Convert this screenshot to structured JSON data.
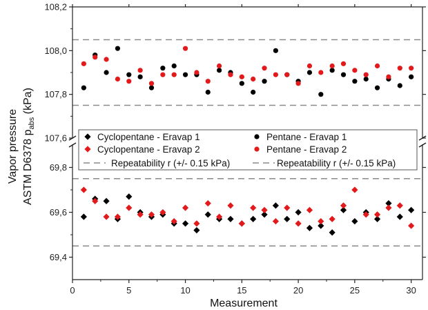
{
  "chart_data": {
    "type": "scatter",
    "title": "",
    "xlabel": "Measurement",
    "ylabel_line1": "Vapor pressure",
    "ylabel_line2_main": "ASTM D6378 p",
    "ylabel_line2_sub": "abs",
    "ylabel_line2_unit": " (kPa)",
    "x_range": [
      0,
      31
    ],
    "x_ticks": [
      "0",
      "5",
      "10",
      "15",
      "20",
      "25",
      "30"
    ],
    "x_tick_values": [
      0,
      5,
      10,
      15,
      20,
      25,
      30
    ],
    "broken_y_axis": true,
    "upper_panel": {
      "ylim": [
        107.6,
        108.2
      ],
      "y_ticks": [
        "107,6",
        "107,8",
        "108,0",
        "108,2"
      ],
      "y_tick_values": [
        107.6,
        107.8,
        108.0,
        108.2
      ],
      "reference_lines": [
        107.75,
        108.05
      ]
    },
    "lower_panel": {
      "ylim": [
        69.3,
        69.9
      ],
      "y_ticks": [
        "69,4",
        "69,6",
        "69,8"
      ],
      "y_tick_values": [
        69.4,
        69.6,
        69.8
      ],
      "reference_lines": [
        69.45,
        69.75
      ]
    },
    "x": [
      1,
      2,
      3,
      4,
      5,
      6,
      7,
      8,
      9,
      10,
      11,
      12,
      13,
      14,
      15,
      16,
      17,
      18,
      19,
      20,
      21,
      22,
      23,
      24,
      25,
      26,
      27,
      28,
      29,
      30
    ],
    "series": [
      {
        "name": "Cyclopentane - Eravap 1",
        "panel": "lower",
        "marker": "diamond",
        "color": "#000000",
        "values": [
          69.58,
          69.66,
          69.65,
          69.57,
          69.67,
          69.6,
          69.58,
          69.59,
          69.55,
          69.55,
          69.52,
          69.59,
          69.57,
          69.57,
          69.55,
          69.57,
          69.59,
          69.63,
          69.57,
          69.6,
          69.53,
          69.54,
          69.51,
          69.61,
          69.56,
          69.6,
          69.57,
          69.64,
          69.58,
          69.61
        ]
      },
      {
        "name": "Cyclopentane - Eravap 2",
        "panel": "lower",
        "marker": "diamond",
        "color": "#e31a1c",
        "values": [
          69.7,
          69.65,
          69.58,
          69.58,
          69.62,
          69.59,
          69.59,
          69.6,
          69.56,
          69.62,
          69.55,
          69.64,
          69.58,
          69.63,
          69.55,
          69.62,
          69.61,
          69.56,
          69.62,
          69.55,
          69.61,
          69.56,
          69.57,
          69.63,
          69.7,
          69.59,
          69.59,
          69.62,
          69.63,
          69.54
        ]
      },
      {
        "name": "Pentane - Eravap 1",
        "panel": "upper",
        "marker": "circle",
        "color": "#000000",
        "values": [
          107.83,
          107.98,
          107.9,
          108.01,
          107.89,
          107.88,
          107.83,
          107.92,
          107.93,
          107.89,
          107.89,
          107.81,
          107.91,
          107.9,
          107.85,
          107.81,
          107.86,
          108.0,
          107.89,
          107.86,
          107.9,
          107.8,
          107.91,
          107.89,
          107.86,
          107.87,
          107.83,
          107.87,
          107.84,
          107.88
        ]
      },
      {
        "name": "Pentane - Eravap 2",
        "panel": "upper",
        "marker": "circle",
        "color": "#e31a1c",
        "values": [
          107.94,
          107.97,
          107.96,
          107.87,
          107.86,
          107.91,
          107.85,
          107.89,
          107.89,
          108.01,
          107.9,
          107.86,
          107.93,
          107.89,
          107.88,
          107.87,
          107.92,
          107.89,
          107.89,
          107.85,
          107.93,
          107.9,
          107.93,
          107.94,
          107.91,
          107.89,
          107.93,
          107.88,
          107.92,
          107.92
        ]
      }
    ],
    "reference_line_label": "Repeatability r (+/- 0.15 kPa)",
    "legend": [
      {
        "label": "Cyclopentane - Eravap 1",
        "marker": "diamond",
        "color": "#000000"
      },
      {
        "label": "Pentane - Eravap 1",
        "marker": "circle",
        "color": "#000000"
      },
      {
        "label": "Cyclopentane - Eravap 2",
        "marker": "diamond",
        "color": "#e31a1c"
      },
      {
        "label": "Pentane - Eravap 2",
        "marker": "circle",
        "color": "#e31a1c"
      },
      {
        "label": "Repeatability r (+/- 0.15 kPa)",
        "marker": "dash",
        "color": "#888888"
      },
      {
        "label": "Repeatability r (+/- 0.15 kPa)",
        "marker": "dash",
        "color": "#888888"
      }
    ],
    "legend_placement": "center, between panels",
    "grid": false
  }
}
